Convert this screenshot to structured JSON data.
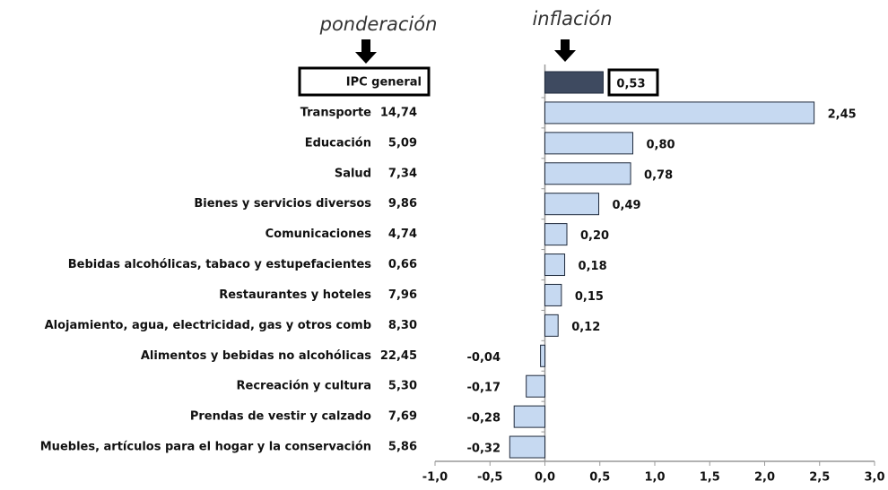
{
  "chart_data": {
    "type": "bar",
    "orientation": "horizontal",
    "annotations": [
      "ponderación",
      "inflación"
    ],
    "categories": [
      "IPC general",
      "Transporte",
      "Educación",
      "Salud",
      "Bienes y servicios diversos",
      "Comunicaciones",
      "Bebidas alcohólicas, tabaco y estupefacientes",
      "Restaurantes y hoteles",
      "Alojamiento, agua, electricidad, gas y otros comb",
      "Alimentos y bebidas no alcohólicas",
      "Recreación y cultura",
      "Prendas de vestir y calzado",
      "Muebles, artículos para el hogar y la conservación"
    ],
    "weights": [
      null,
      "14,74",
      "5,09",
      "7,34",
      "9,86",
      "4,74",
      "0,66",
      "7,96",
      "8,30",
      "22,45",
      "5,30",
      "7,69",
      "5,86"
    ],
    "values": [
      0.53,
      2.45,
      0.8,
      0.78,
      0.49,
      0.2,
      0.18,
      0.15,
      0.12,
      -0.04,
      -0.17,
      -0.28,
      -0.32
    ],
    "value_labels": [
      "0,53",
      "2,45",
      "0,80",
      "0,78",
      "0,49",
      "0,20",
      "0,18",
      "0,15",
      "0,12",
      "-0,04",
      "-0,17",
      "-0,28",
      "-0,32"
    ],
    "colors": [
      "#3e4a60",
      "#c6d9f1"
    ],
    "xlim": [
      -1,
      3
    ],
    "xticks": [
      {
        "value": -1,
        "label": "-1,0"
      },
      {
        "value": -0.5,
        "label": "-0,5"
      },
      {
        "value": 0,
        "label": "0,0"
      },
      {
        "value": 0.5,
        "label": "0,5"
      },
      {
        "value": 1,
        "label": "1,0"
      },
      {
        "value": 1.5,
        "label": "1,5"
      },
      {
        "value": 2,
        "label": "2,0"
      },
      {
        "value": 2.5,
        "label": "2,5"
      },
      {
        "value": 3,
        "label": "3,0"
      }
    ]
  }
}
